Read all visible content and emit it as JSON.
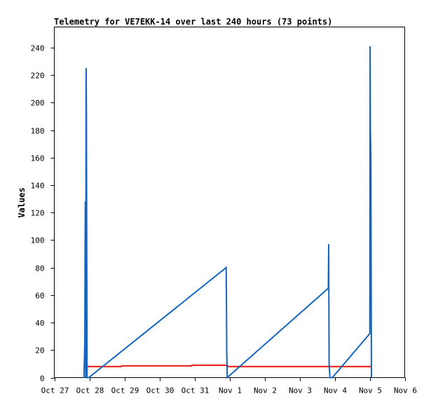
{
  "chart_data": {
    "type": "line",
    "title": "Telemetry for VE7EKK-14 over last 240 hours (73 points)",
    "xlabel": "",
    "ylabel": "Values",
    "xlim": [
      0,
      240
    ],
    "ylim": [
      0,
      255
    ],
    "x_ticks": [
      {
        "label": "Oct 27",
        "value": 0
      },
      {
        "label": "Oct 28",
        "value": 24
      },
      {
        "label": "Oct 29",
        "value": 48
      },
      {
        "label": "Oct 30",
        "value": 72
      },
      {
        "label": "Oct 31",
        "value": 96
      },
      {
        "label": "Nov 1",
        "value": 120
      },
      {
        "label": "Nov 2",
        "value": 144
      },
      {
        "label": "Nov 3",
        "value": 168
      },
      {
        "label": "Nov 4",
        "value": 192
      },
      {
        "label": "Nov 5",
        "value": 216
      },
      {
        "label": "Nov 6",
        "value": 240
      }
    ],
    "y_ticks": [
      0,
      20,
      40,
      60,
      80,
      100,
      120,
      140,
      160,
      180,
      200,
      220,
      240
    ],
    "grid": false,
    "legend": "none",
    "series": [
      {
        "color": "#1565c0",
        "x": [
          20.3,
          20.9,
          21.2,
          21.5,
          21.8,
          22.0,
          22.4,
          23.6,
          117.7,
          117.9,
          118.1,
          118.4,
          187.7,
          187.9,
          188.2,
          188.8,
          190.4,
          216.1,
          216.3,
          216.5,
          216.8,
          217.2
        ],
        "y": [
          0,
          25,
          128,
          0,
          225,
          193,
          0,
          0,
          80,
          61,
          21,
          0,
          65,
          97,
          10,
          0,
          0,
          32,
          241,
          181,
          161,
          0
        ]
      },
      {
        "color": "#e8170b",
        "x": [
          20.3,
          20.9,
          46.0,
          46.2,
          94.0,
          94.2,
          118.5,
          118.7,
          216.0,
          217.2
        ],
        "y": [
          9,
          8,
          8,
          8.5,
          8.5,
          9,
          9,
          8,
          8,
          8
        ]
      }
    ]
  }
}
